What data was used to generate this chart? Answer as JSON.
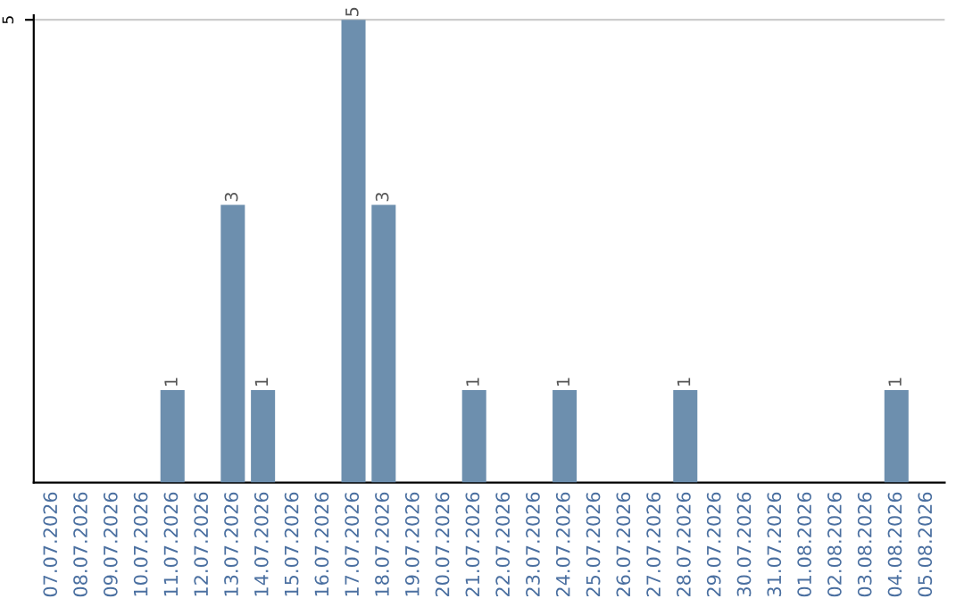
{
  "chart_data": {
    "type": "bar",
    "categories": [
      "07.07.2026",
      "08.07.2026",
      "09.07.2026",
      "10.07.2026",
      "11.07.2026",
      "12.07.2026",
      "13.07.2026",
      "14.07.2026",
      "15.07.2026",
      "16.07.2026",
      "17.07.2026",
      "18.07.2026",
      "19.07.2026",
      "20.07.2026",
      "21.07.2026",
      "22.07.2026",
      "23.07.2026",
      "24.07.2026",
      "25.07.2026",
      "26.07.2026",
      "27.07.2026",
      "28.07.2026",
      "29.07.2026",
      "30.07.2026",
      "31.07.2026",
      "01.08.2026",
      "02.08.2026",
      "03.08.2026",
      "04.08.2026",
      "05.08.2026"
    ],
    "values": [
      0,
      0,
      0,
      0,
      1,
      0,
      3,
      1,
      0,
      0,
      5,
      3,
      0,
      0,
      1,
      0,
      0,
      1,
      0,
      0,
      0,
      1,
      0,
      0,
      0,
      0,
      0,
      0,
      1,
      0
    ],
    "value_labels": [
      null,
      null,
      null,
      null,
      "1",
      null,
      "3",
      "1",
      null,
      null,
      "5",
      "3",
      null,
      null,
      "1",
      null,
      null,
      "1",
      null,
      null,
      null,
      "1",
      null,
      null,
      null,
      null,
      null,
      null,
      "1",
      null
    ],
    "color": "#6d8fae",
    "ylim": [
      0,
      5.05
    ],
    "yticks": [
      5
    ],
    "grid": "y"
  }
}
